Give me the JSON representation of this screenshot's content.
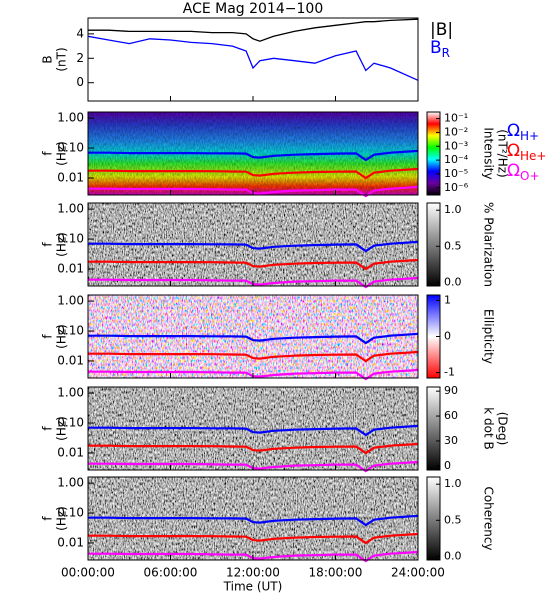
{
  "chart_data": [
    {
      "type": "line",
      "title": "ACE Mag 2014−100",
      "ylabel": [
        "B",
        "(nT)"
      ],
      "x": [
        0,
        1.5,
        3,
        4.5,
        6,
        7.5,
        9,
        10.5,
        11.5,
        12,
        12.5,
        13.5,
        15,
        16.5,
        18,
        19.5,
        20.2,
        20.8,
        22,
        24
      ],
      "ylim": [
        -1.5,
        5.3
      ],
      "yticks": [
        0,
        2,
        4
      ],
      "series": [
        {
          "name": "|B|",
          "color": "#000000",
          "values": [
            4.3,
            4.3,
            4.2,
            4.2,
            4.2,
            4.2,
            4.1,
            4.1,
            4.0,
            3.6,
            3.4,
            3.8,
            4.2,
            4.5,
            4.7,
            4.9,
            5.0,
            5.0,
            5.1,
            5.2
          ]
        },
        {
          "name": "B",
          "subscript": "R",
          "color": "#0000ff",
          "values": [
            3.8,
            3.5,
            3.2,
            3.6,
            3.5,
            3.3,
            3.2,
            3.0,
            2.6,
            1.2,
            1.8,
            2.0,
            1.8,
            1.6,
            2.2,
            2.6,
            1.0,
            1.6,
            1.2,
            0.2
          ]
        }
      ]
    },
    {
      "type": "spectrogram",
      "ylabel": [
        "f",
        "(Hz)"
      ],
      "log_y": true,
      "ylim": [
        0.0027,
        1.6
      ],
      "yticks": [
        {
          "value": 1,
          "label": "1.00"
        },
        {
          "value": 0.1,
          "label": "0.10"
        },
        {
          "value": 0.01,
          "label": "0.01"
        }
      ],
      "colormap": "rainbow",
      "x": [
        0,
        1.5,
        3,
        4.5,
        6,
        7.5,
        9,
        10.5,
        11.5,
        12,
        12.5,
        13.5,
        15,
        16.5,
        18,
        19.5,
        20.2,
        20.8,
        22,
        24
      ],
      "series": [
        {
          "name": "Ω",
          "subscript": "H+",
          "color": "#0000ff",
          "values": [
            0.07,
            0.07,
            0.068,
            0.068,
            0.068,
            0.068,
            0.067,
            0.066,
            0.065,
            0.05,
            0.048,
            0.055,
            0.06,
            0.063,
            0.065,
            0.066,
            0.04,
            0.06,
            0.07,
            0.08
          ]
        },
        {
          "name": "Ω",
          "subscript": "He+",
          "color": "#ff0000",
          "values": [
            0.0175,
            0.0175,
            0.017,
            0.017,
            0.017,
            0.017,
            0.0168,
            0.0165,
            0.0162,
            0.0125,
            0.012,
            0.0138,
            0.015,
            0.0158,
            0.0162,
            0.0165,
            0.01,
            0.015,
            0.0175,
            0.02
          ]
        },
        {
          "name": "Ω",
          "subscript": "O+",
          "color": "#ff00ff",
          "values": [
            0.0044,
            0.0044,
            0.0043,
            0.0043,
            0.0043,
            0.0043,
            0.0042,
            0.0041,
            0.0041,
            0.0031,
            0.003,
            0.0034,
            0.0038,
            0.0039,
            0.0041,
            0.0041,
            0.0025,
            0.0038,
            0.0044,
            0.005
          ]
        }
      ],
      "colorbar": {
        "label": [
          "Intensity",
          "(nT²/Hz)"
        ],
        "log": true,
        "lim": [
          3e-07,
          0.3
        ],
        "ticks": [
          {
            "value": 0.1,
            "label": "10⁻¹"
          },
          {
            "value": 0.01,
            "label": "10⁻²"
          },
          {
            "value": 0.001,
            "label": "10⁻³"
          },
          {
            "value": 0.0001,
            "label": "10⁻⁴"
          },
          {
            "value": 1e-05,
            "label": "10⁻⁵"
          },
          {
            "value": 1e-06,
            "label": "10⁻⁶"
          }
        ],
        "colors": [
          "#ffffff",
          "#ff0000",
          "#ffff00",
          "#00ff00",
          "#00ffff",
          "#0000ff",
          "#6a00a0",
          "#000000"
        ]
      }
    },
    {
      "type": "spectrogram",
      "ylabel": [
        "f",
        "(Hz)"
      ],
      "log_y": true,
      "ylim": [
        0.0027,
        1.6
      ],
      "yticks": [
        {
          "value": 1,
          "label": "1.00"
        },
        {
          "value": 0.1,
          "label": "0.10"
        },
        {
          "value": 0.01,
          "label": "0.01"
        }
      ],
      "colormap": "gray",
      "colorbar": {
        "label": [
          "% Polarization"
        ],
        "log": false,
        "lim": [
          -0.05,
          1.1
        ],
        "ticks": [
          {
            "value": 0,
            "label": "0.0"
          },
          {
            "value": 0.5,
            "label": "0.5"
          },
          {
            "value": 1,
            "label": "1.0"
          }
        ],
        "colors": [
          "#000000",
          "#ffffff"
        ]
      }
    },
    {
      "type": "spectrogram",
      "ylabel": [
        "f",
        "(Hz)"
      ],
      "log_y": true,
      "ylim": [
        0.0027,
        1.6
      ],
      "yticks": [
        {
          "value": 1,
          "label": "1.00"
        },
        {
          "value": 0.1,
          "label": "0.10"
        },
        {
          "value": 0.01,
          "label": "0.01"
        }
      ],
      "colormap": "bwr",
      "colorbar": {
        "label": [
          "Ellipticity"
        ],
        "log": false,
        "lim": [
          -1.15,
          1.15
        ],
        "ticks": [
          1,
          0,
          -1
        ],
        "colors": [
          "#ff0000",
          "#ffffff",
          "#0000ff"
        ]
      }
    },
    {
      "type": "spectrogram",
      "ylabel": [
        "f",
        "(Hz)"
      ],
      "log_y": true,
      "ylim": [
        0.0027,
        1.6
      ],
      "yticks": [
        {
          "value": 1,
          "label": "1.00"
        },
        {
          "value": 0.1,
          "label": "0.10"
        },
        {
          "value": 0.01,
          "label": "0.01"
        }
      ],
      "colormap": "gray",
      "colorbar": {
        "label": [
          "k dot B",
          "(Deg)"
        ],
        "log": false,
        "lim": [
          -5,
          95
        ],
        "ticks": [
          0,
          30,
          60,
          90
        ],
        "colors": [
          "#000000",
          "#ffffff"
        ]
      }
    },
    {
      "type": "spectrogram",
      "ylabel": [
        "f",
        "(Hz)"
      ],
      "log_y": true,
      "ylim": [
        0.0027,
        1.6
      ],
      "yticks": [
        {
          "value": 1,
          "label": "1.00"
        },
        {
          "value": 0.1,
          "label": "0.10"
        },
        {
          "value": 0.01,
          "label": "0.01"
        }
      ],
      "colormap": "gray",
      "colorbar": {
        "label": [
          "Coherency"
        ],
        "log": false,
        "lim": [
          -0.05,
          1.1
        ],
        "ticks": [
          {
            "value": 0,
            "label": "0.0"
          },
          {
            "value": 0.5,
            "label": "0.5"
          },
          {
            "value": 1,
            "label": "1.0"
          }
        ],
        "colors": [
          "#000000",
          "#ffffff"
        ]
      },
      "xlim": [
        0,
        24
      ],
      "xticks": [
        {
          "value": 0,
          "label": "00:00:00"
        },
        {
          "value": 6,
          "label": "06:00:00"
        },
        {
          "value": 12,
          "label": "12:00:00"
        },
        {
          "value": 18,
          "label": "18:00:00"
        },
        {
          "value": 24,
          "label": "24:00:00"
        }
      ],
      "xlabel": "Time (UT)"
    }
  ]
}
